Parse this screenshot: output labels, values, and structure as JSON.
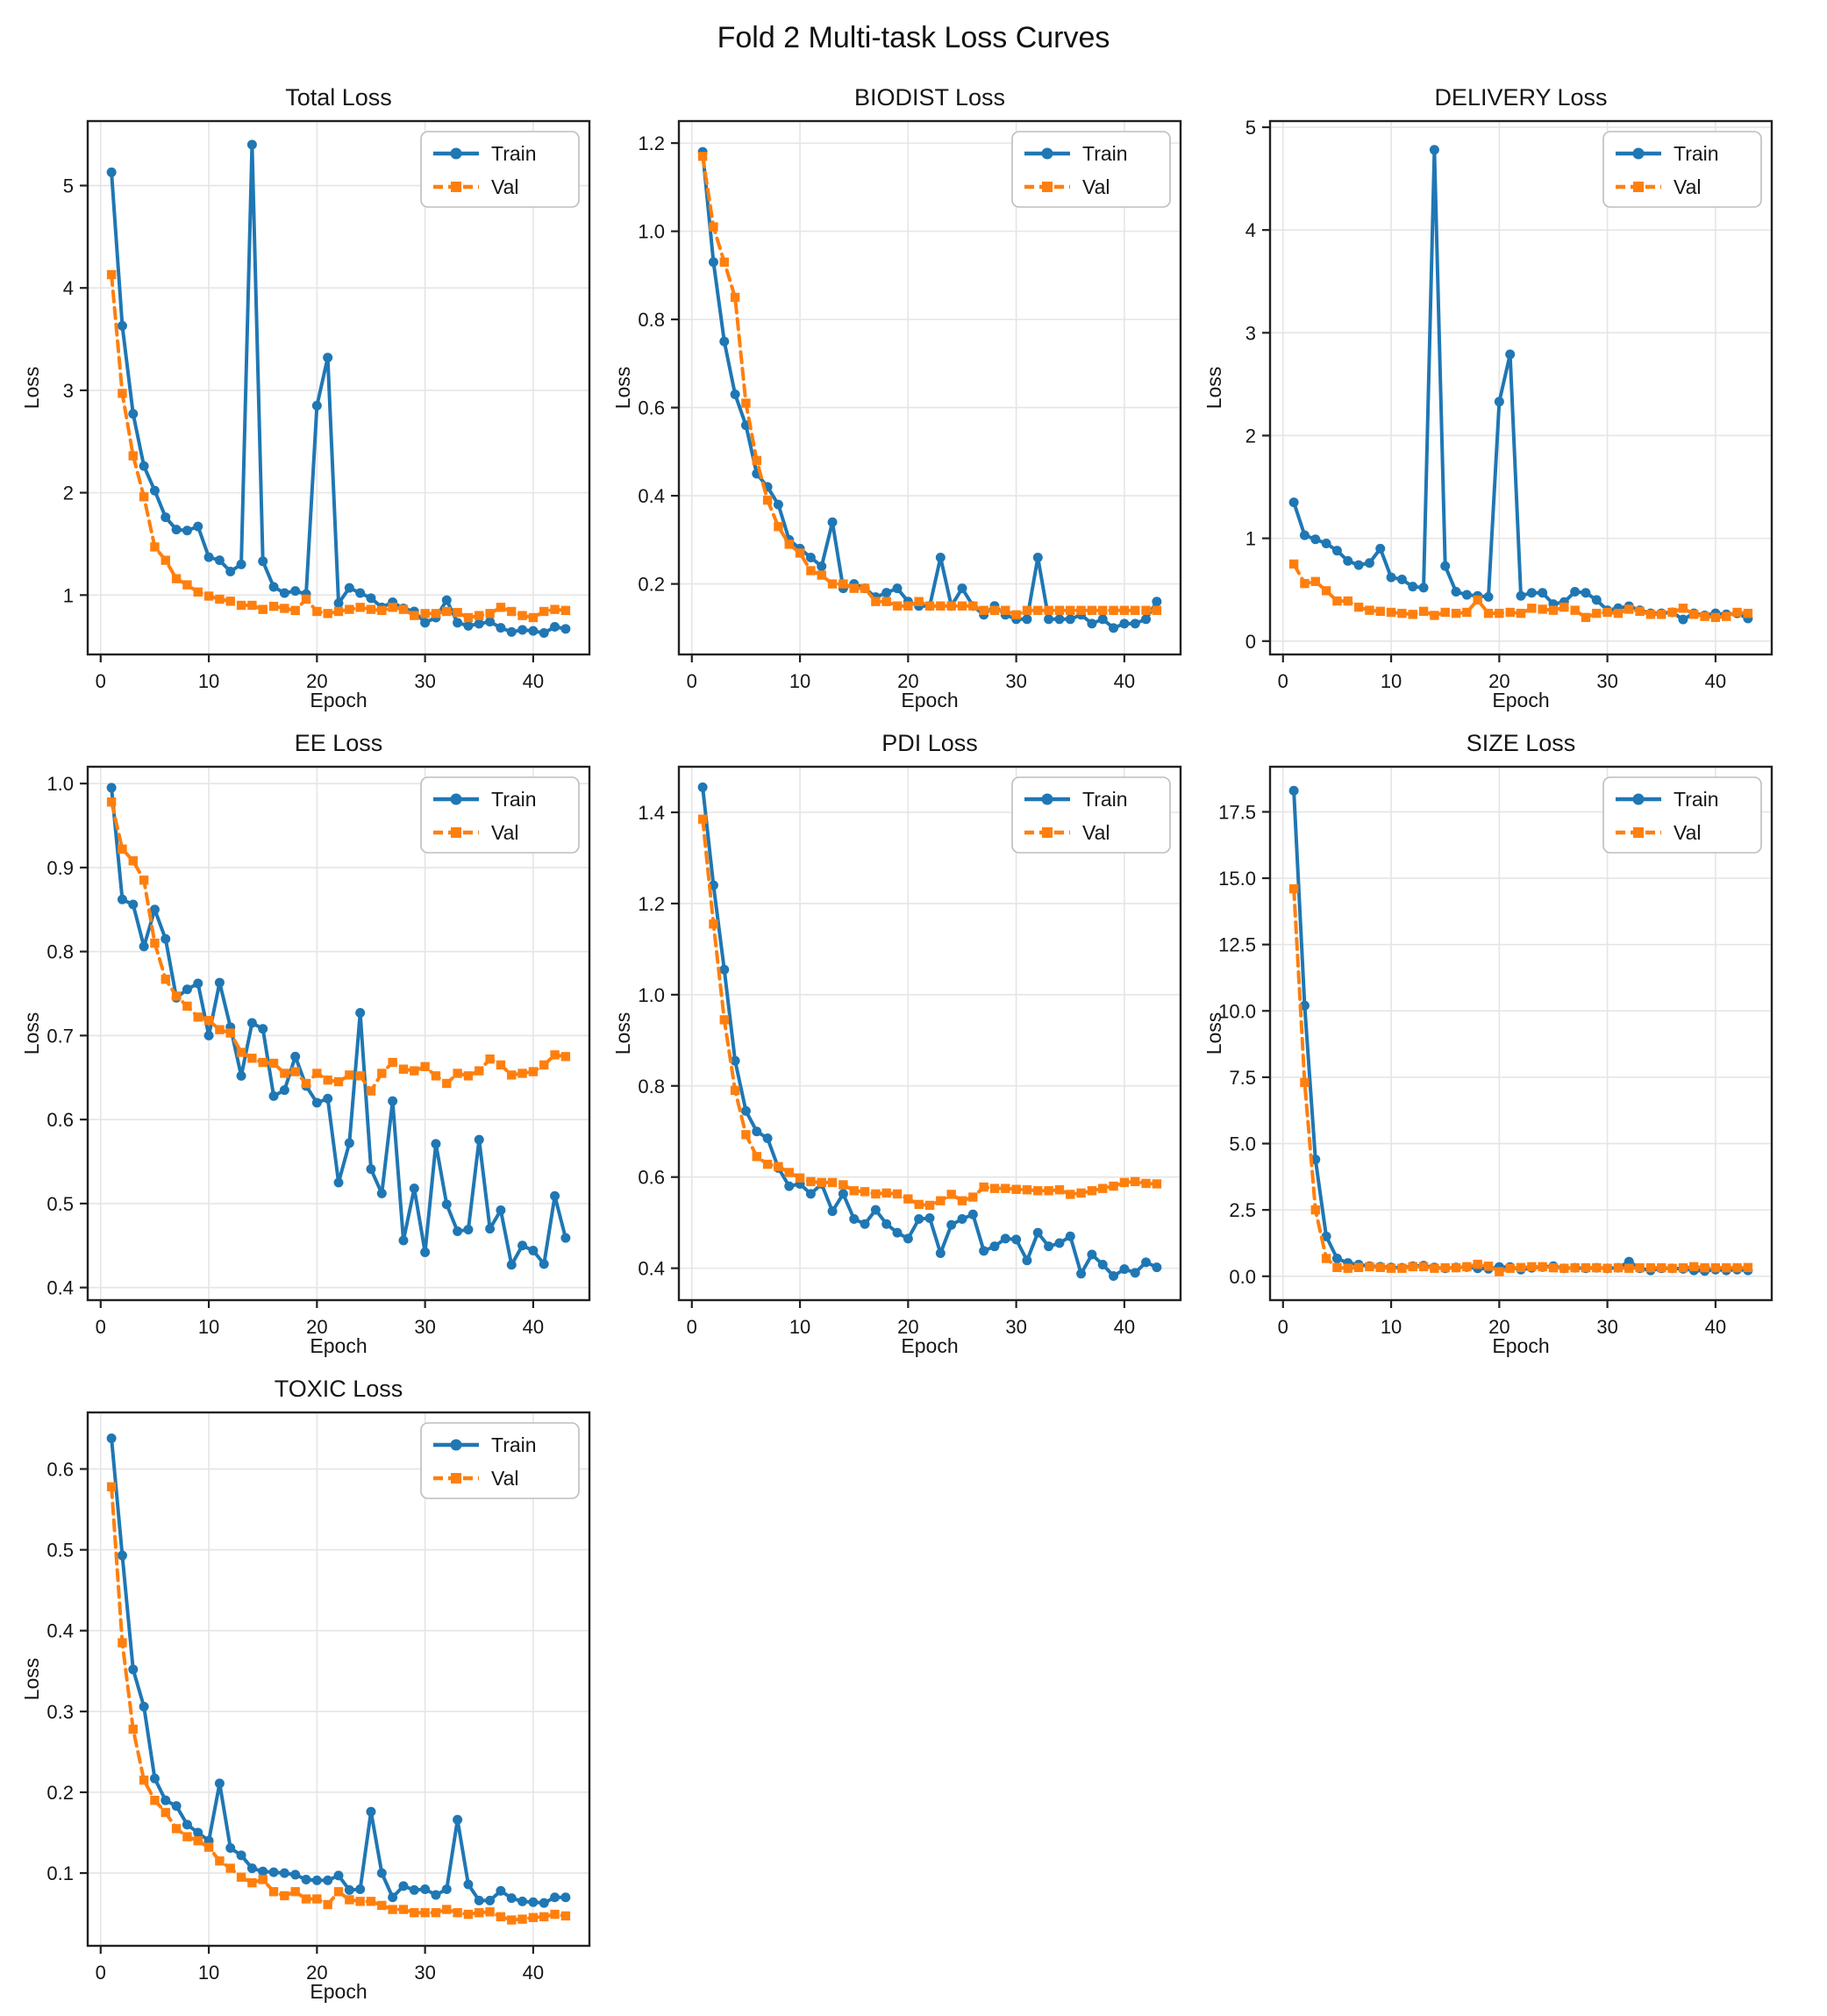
{
  "figure": {
    "title": "Fold 2 Multi-task Loss Curves"
  },
  "legend": {
    "train_label": "Train",
    "val_label": "Val",
    "position": "upper-right"
  },
  "colors": {
    "train": "#1f77b4",
    "val": "#ff7f0e",
    "grid": "#e5e5e5",
    "spine": "#222222"
  },
  "epochs": {
    "start": 1,
    "end": 43
  },
  "chart_data": [
    {
      "id": "total",
      "type": "line",
      "title": "Total Loss",
      "xlabel": "Epoch",
      "ylabel": "Loss",
      "xlim": [
        -1.2,
        45.2
      ],
      "ylim": [
        0.42,
        5.63
      ],
      "grid": true,
      "legend_position": "upper-right",
      "xticks": [
        0,
        10,
        20,
        30,
        40
      ],
      "xtick_labels": [
        "0",
        "10",
        "20",
        "30",
        "40"
      ],
      "yticks": [
        1,
        2,
        3,
        4,
        5
      ],
      "ytick_labels": [
        "1",
        "2",
        "3",
        "4",
        "5"
      ],
      "series": [
        {
          "name": "Train",
          "color": "#1f77b4",
          "marker": "circle",
          "dash": false,
          "values": [
            5.13,
            3.63,
            2.77,
            2.26,
            2.02,
            1.76,
            1.64,
            1.63,
            1.67,
            1.37,
            1.34,
            1.23,
            1.3,
            5.4,
            1.33,
            1.08,
            1.02,
            1.04,
            1.01,
            2.85,
            3.32,
            0.92,
            1.07,
            1.02,
            0.97,
            0.88,
            0.93,
            0.87,
            0.84,
            0.73,
            0.78,
            0.95,
            0.73,
            0.7,
            0.72,
            0.74,
            0.68,
            0.64,
            0.66,
            0.65,
            0.63,
            0.69,
            0.67
          ]
        },
        {
          "name": "Val",
          "color": "#ff7f0e",
          "marker": "square",
          "dash": true,
          "values": [
            4.13,
            2.97,
            2.36,
            1.96,
            1.47,
            1.34,
            1.16,
            1.1,
            1.03,
            0.99,
            0.96,
            0.94,
            0.9,
            0.9,
            0.86,
            0.89,
            0.87,
            0.85,
            0.96,
            0.84,
            0.82,
            0.84,
            0.86,
            0.88,
            0.86,
            0.85,
            0.88,
            0.86,
            0.8,
            0.82,
            0.82,
            0.84,
            0.83,
            0.78,
            0.8,
            0.82,
            0.88,
            0.84,
            0.8,
            0.78,
            0.84,
            0.86,
            0.85
          ]
        }
      ]
    },
    {
      "id": "biodist",
      "type": "line",
      "title": "BIODIST Loss",
      "xlabel": "Epoch",
      "ylabel": "Loss",
      "xlim": [
        -1.2,
        45.2
      ],
      "ylim": [
        0.04,
        1.25
      ],
      "grid": true,
      "legend_position": "upper-right",
      "xticks": [
        0,
        10,
        20,
        30,
        40
      ],
      "xtick_labels": [
        "0",
        "10",
        "20",
        "30",
        "40"
      ],
      "yticks": [
        0.2,
        0.4,
        0.6,
        0.8,
        1.0,
        1.2
      ],
      "ytick_labels": [
        "0.2",
        "0.4",
        "0.6",
        "0.8",
        "1.0",
        "1.2"
      ],
      "series": [
        {
          "name": "Train",
          "color": "#1f77b4",
          "marker": "circle",
          "dash": false,
          "values": [
            1.18,
            0.93,
            0.75,
            0.63,
            0.56,
            0.45,
            0.42,
            0.38,
            0.3,
            0.28,
            0.26,
            0.24,
            0.34,
            0.19,
            0.2,
            0.19,
            0.17,
            0.18,
            0.19,
            0.16,
            0.15,
            0.15,
            0.26,
            0.15,
            0.19,
            0.15,
            0.13,
            0.15,
            0.13,
            0.12,
            0.12,
            0.26,
            0.12,
            0.12,
            0.12,
            0.13,
            0.11,
            0.12,
            0.1,
            0.11,
            0.11,
            0.12,
            0.16
          ]
        },
        {
          "name": "Val",
          "color": "#ff7f0e",
          "marker": "square",
          "dash": true,
          "values": [
            1.17,
            1.01,
            0.93,
            0.85,
            0.61,
            0.48,
            0.39,
            0.33,
            0.29,
            0.27,
            0.23,
            0.22,
            0.2,
            0.2,
            0.19,
            0.19,
            0.16,
            0.16,
            0.15,
            0.15,
            0.16,
            0.15,
            0.15,
            0.15,
            0.15,
            0.15,
            0.14,
            0.14,
            0.14,
            0.13,
            0.14,
            0.14,
            0.14,
            0.14,
            0.14,
            0.14,
            0.14,
            0.14,
            0.14,
            0.14,
            0.14,
            0.14,
            0.14
          ]
        }
      ]
    },
    {
      "id": "delivery",
      "type": "line",
      "title": "DELIVERY Loss",
      "xlabel": "Epoch",
      "ylabel": "Loss",
      "xlim": [
        -1.2,
        45.2
      ],
      "ylim": [
        -0.13,
        5.06
      ],
      "grid": true,
      "legend_position": "upper-right",
      "xticks": [
        0,
        10,
        20,
        30,
        40
      ],
      "xtick_labels": [
        "0",
        "10",
        "20",
        "30",
        "40"
      ],
      "yticks": [
        0,
        1,
        2,
        3,
        4,
        5
      ],
      "ytick_labels": [
        "0",
        "1",
        "2",
        "3",
        "4",
        "5"
      ],
      "series": [
        {
          "name": "Train",
          "color": "#1f77b4",
          "marker": "circle",
          "dash": false,
          "values": [
            1.35,
            1.03,
            0.99,
            0.95,
            0.88,
            0.78,
            0.74,
            0.76,
            0.9,
            0.62,
            0.6,
            0.53,
            0.52,
            4.78,
            0.73,
            0.48,
            0.45,
            0.44,
            0.43,
            2.33,
            2.79,
            0.44,
            0.47,
            0.47,
            0.36,
            0.38,
            0.48,
            0.47,
            0.4,
            0.3,
            0.32,
            0.34,
            0.3,
            0.27,
            0.27,
            0.28,
            0.21,
            0.27,
            0.25,
            0.27,
            0.26,
            0.27,
            0.22
          ]
        },
        {
          "name": "Val",
          "color": "#ff7f0e",
          "marker": "square",
          "dash": true,
          "values": [
            0.75,
            0.56,
            0.58,
            0.49,
            0.39,
            0.39,
            0.33,
            0.3,
            0.29,
            0.28,
            0.27,
            0.26,
            0.29,
            0.25,
            0.28,
            0.27,
            0.28,
            0.4,
            0.27,
            0.27,
            0.28,
            0.27,
            0.32,
            0.31,
            0.3,
            0.33,
            0.3,
            0.23,
            0.27,
            0.28,
            0.27,
            0.31,
            0.29,
            0.26,
            0.26,
            0.28,
            0.32,
            0.26,
            0.24,
            0.23,
            0.24,
            0.28,
            0.27
          ]
        }
      ]
    },
    {
      "id": "ee",
      "type": "line",
      "title": "EE Loss",
      "xlabel": "Epoch",
      "ylabel": "Loss",
      "xlim": [
        -1.2,
        45.2
      ],
      "ylim": [
        0.385,
        1.02
      ],
      "grid": true,
      "legend_position": "upper-right",
      "xticks": [
        0,
        10,
        20,
        30,
        40
      ],
      "xtick_labels": [
        "0",
        "10",
        "20",
        "30",
        "40"
      ],
      "yticks": [
        0.4,
        0.5,
        0.6,
        0.7,
        0.8,
        0.9,
        1.0
      ],
      "ytick_labels": [
        "0.4",
        "0.5",
        "0.6",
        "0.7",
        "0.8",
        "0.9",
        "1.0"
      ],
      "series": [
        {
          "name": "Train",
          "color": "#1f77b4",
          "marker": "circle",
          "dash": false,
          "values": [
            0.995,
            0.862,
            0.856,
            0.806,
            0.85,
            0.815,
            0.745,
            0.755,
            0.762,
            0.7,
            0.763,
            0.71,
            0.652,
            0.715,
            0.708,
            0.628,
            0.635,
            0.675,
            0.64,
            0.62,
            0.625,
            0.525,
            0.572,
            0.727,
            0.541,
            0.512,
            0.622,
            0.456,
            0.518,
            0.442,
            0.571,
            0.499,
            0.467,
            0.469,
            0.576,
            0.47,
            0.492,
            0.427,
            0.45,
            0.444,
            0.428,
            0.509,
            0.459
          ]
        },
        {
          "name": "Val",
          "color": "#ff7f0e",
          "marker": "square",
          "dash": true,
          "values": [
            0.978,
            0.922,
            0.908,
            0.885,
            0.81,
            0.767,
            0.747,
            0.735,
            0.722,
            0.718,
            0.707,
            0.703,
            0.68,
            0.673,
            0.668,
            0.667,
            0.655,
            0.657,
            0.643,
            0.655,
            0.647,
            0.645,
            0.653,
            0.652,
            0.634,
            0.655,
            0.668,
            0.66,
            0.658,
            0.663,
            0.652,
            0.643,
            0.655,
            0.652,
            0.658,
            0.672,
            0.665,
            0.653,
            0.655,
            0.657,
            0.665,
            0.677,
            0.675
          ]
        }
      ]
    },
    {
      "id": "pdi",
      "type": "line",
      "title": "PDI Loss",
      "xlabel": "Epoch",
      "ylabel": "Loss",
      "xlim": [
        -1.2,
        45.2
      ],
      "ylim": [
        0.33,
        1.5
      ],
      "grid": true,
      "legend_position": "upper-right",
      "xticks": [
        0,
        10,
        20,
        30,
        40
      ],
      "xtick_labels": [
        "0",
        "10",
        "20",
        "30",
        "40"
      ],
      "yticks": [
        0.4,
        0.6,
        0.8,
        1.0,
        1.2,
        1.4
      ],
      "ytick_labels": [
        "0.4",
        "0.6",
        "0.8",
        "1.0",
        "1.2",
        "1.4"
      ],
      "series": [
        {
          "name": "Train",
          "color": "#1f77b4",
          "marker": "circle",
          "dash": false,
          "values": [
            1.455,
            1.24,
            1.055,
            0.855,
            0.745,
            0.7,
            0.685,
            0.62,
            0.58,
            0.585,
            0.563,
            0.585,
            0.525,
            0.563,
            0.508,
            0.497,
            0.528,
            0.497,
            0.478,
            0.465,
            0.508,
            0.51,
            0.433,
            0.495,
            0.508,
            0.518,
            0.438,
            0.448,
            0.465,
            0.463,
            0.417,
            0.478,
            0.448,
            0.455,
            0.47,
            0.388,
            0.43,
            0.408,
            0.383,
            0.398,
            0.39,
            0.413,
            0.402
          ]
        },
        {
          "name": "Val",
          "color": "#ff7f0e",
          "marker": "square",
          "dash": true,
          "values": [
            1.385,
            1.155,
            0.945,
            0.79,
            0.693,
            0.645,
            0.628,
            0.623,
            0.61,
            0.598,
            0.59,
            0.588,
            0.588,
            0.583,
            0.57,
            0.568,
            0.563,
            0.565,
            0.563,
            0.552,
            0.54,
            0.538,
            0.548,
            0.562,
            0.548,
            0.556,
            0.578,
            0.575,
            0.575,
            0.573,
            0.572,
            0.57,
            0.57,
            0.572,
            0.562,
            0.565,
            0.57,
            0.575,
            0.58,
            0.588,
            0.59,
            0.586,
            0.585
          ]
        }
      ]
    },
    {
      "id": "size",
      "type": "line",
      "title": "SIZE Loss",
      "xlabel": "Epoch",
      "ylabel": "Loss",
      "xlim": [
        -1.2,
        45.2
      ],
      "ylim": [
        -0.9,
        19.2
      ],
      "grid": true,
      "legend_position": "upper-right",
      "xticks": [
        0,
        10,
        20,
        30,
        40
      ],
      "xtick_labels": [
        "0",
        "10",
        "20",
        "30",
        "40"
      ],
      "yticks": [
        0.0,
        2.5,
        5.0,
        7.5,
        10.0,
        12.5,
        15.0,
        17.5
      ],
      "ytick_labels": [
        "0.0",
        "2.5",
        "5.0",
        "7.5",
        "10.0",
        "12.5",
        "15.0",
        "17.5"
      ],
      "series": [
        {
          "name": "Train",
          "color": "#1f77b4",
          "marker": "circle",
          "dash": false,
          "values": [
            18.3,
            10.2,
            4.4,
            1.5,
            0.67,
            0.5,
            0.44,
            0.38,
            0.36,
            0.33,
            0.32,
            0.38,
            0.4,
            0.33,
            0.3,
            0.33,
            0.35,
            0.3,
            0.28,
            0.35,
            0.35,
            0.25,
            0.32,
            0.35,
            0.38,
            0.3,
            0.32,
            0.3,
            0.32,
            0.3,
            0.32,
            0.55,
            0.3,
            0.22,
            0.3,
            0.3,
            0.28,
            0.22,
            0.2,
            0.25,
            0.22,
            0.25,
            0.22
          ]
        },
        {
          "name": "Val",
          "color": "#ff7f0e",
          "marker": "square",
          "dash": true,
          "values": [
            14.6,
            7.3,
            2.5,
            0.67,
            0.33,
            0.3,
            0.33,
            0.36,
            0.33,
            0.3,
            0.3,
            0.36,
            0.36,
            0.3,
            0.32,
            0.32,
            0.36,
            0.45,
            0.38,
            0.17,
            0.3,
            0.33,
            0.36,
            0.36,
            0.32,
            0.3,
            0.32,
            0.32,
            0.32,
            0.3,
            0.32,
            0.3,
            0.32,
            0.32,
            0.32,
            0.3,
            0.32,
            0.36,
            0.32,
            0.32,
            0.32,
            0.32,
            0.33
          ]
        }
      ]
    },
    {
      "id": "toxic",
      "type": "line",
      "title": "TOXIC Loss",
      "xlabel": "Epoch",
      "ylabel": "Loss",
      "xlim": [
        -1.2,
        45.2
      ],
      "ylim": [
        0.01,
        0.67
      ],
      "grid": true,
      "legend_position": "upper-right",
      "xticks": [
        0,
        10,
        20,
        30,
        40
      ],
      "xtick_labels": [
        "0",
        "10",
        "20",
        "30",
        "40"
      ],
      "yticks": [
        0.1,
        0.2,
        0.3,
        0.4,
        0.5,
        0.6
      ],
      "ytick_labels": [
        "0.1",
        "0.2",
        "0.3",
        "0.4",
        "0.5",
        "0.6"
      ],
      "series": [
        {
          "name": "Train",
          "color": "#1f77b4",
          "marker": "circle",
          "dash": false,
          "values": [
            0.638,
            0.493,
            0.352,
            0.306,
            0.217,
            0.19,
            0.183,
            0.16,
            0.15,
            0.14,
            0.211,
            0.131,
            0.122,
            0.106,
            0.102,
            0.101,
            0.1,
            0.098,
            0.092,
            0.091,
            0.091,
            0.097,
            0.079,
            0.08,
            0.176,
            0.1,
            0.07,
            0.084,
            0.079,
            0.08,
            0.073,
            0.08,
            0.166,
            0.086,
            0.066,
            0.066,
            0.078,
            0.069,
            0.065,
            0.064,
            0.063,
            0.07,
            0.07
          ]
        },
        {
          "name": "Val",
          "color": "#ff7f0e",
          "marker": "square",
          "dash": true,
          "values": [
            0.578,
            0.385,
            0.278,
            0.215,
            0.19,
            0.175,
            0.155,
            0.145,
            0.14,
            0.132,
            0.115,
            0.106,
            0.095,
            0.088,
            0.092,
            0.077,
            0.072,
            0.077,
            0.068,
            0.068,
            0.061,
            0.077,
            0.067,
            0.065,
            0.065,
            0.06,
            0.055,
            0.055,
            0.051,
            0.051,
            0.051,
            0.055,
            0.051,
            0.049,
            0.051,
            0.052,
            0.046,
            0.042,
            0.043,
            0.045,
            0.046,
            0.049,
            0.047
          ]
        }
      ]
    }
  ]
}
